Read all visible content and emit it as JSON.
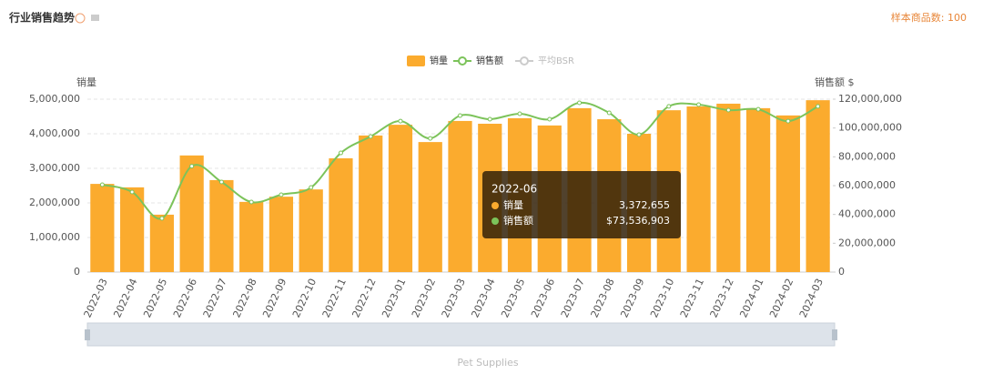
{
  "header": {
    "title": "行业销售趋势",
    "sample": "样本商品数: 100"
  },
  "chart_data": {
    "type": "bar_line",
    "categories": [
      "2022-03",
      "2022-04",
      "2022-05",
      "2022-06",
      "2022-07",
      "2022-08",
      "2022-09",
      "2022-10",
      "2022-11",
      "2022-12",
      "2023-01",
      "2023-02",
      "2023-03",
      "2023-04",
      "2023-05",
      "2023-06",
      "2023-07",
      "2023-08",
      "2023-09",
      "2023-10",
      "2023-11",
      "2023-12",
      "2024-01",
      "2024-02",
      "2024-03"
    ],
    "series": [
      {
        "name": "销量",
        "type": "bar",
        "color": "#fbab2e",
        "values": [
          2550000,
          2450000,
          1660000,
          3372655,
          2660000,
          2030000,
          2180000,
          2390000,
          3290000,
          3950000,
          4260000,
          3760000,
          4370000,
          4290000,
          4450000,
          4240000,
          4740000,
          4420000,
          4000000,
          4680000,
          4790000,
          4870000,
          4740000,
          4530000,
          4970000
        ]
      },
      {
        "name": "销售额",
        "type": "line",
        "axis": "y2",
        "color": "#7cc35a",
        "values": [
          60600000,
          55600000,
          37300000,
          73536903,
          62500000,
          48600000,
          53700000,
          58700000,
          82700000,
          94100000,
          104800000,
          92800000,
          108600000,
          106100000,
          109900000,
          106100000,
          117500000,
          110500000,
          95400000,
          115000000,
          116200000,
          112400000,
          113000000,
          104800000,
          115000000
        ]
      }
    ],
    "inactive_legend": "平均BSR",
    "ylabel": "销量",
    "y2label": "销售额 $",
    "ylim": [
      0,
      5000000
    ],
    "yticks": [
      0,
      {
        "value": 1000000,
        "label": "1,000,000"
      },
      {
        "value": 2000000,
        "label": "2,000,000"
      },
      {
        "value": 3000000,
        "label": "3,000,000"
      },
      {
        "value": 4000000,
        "label": "4,000,000"
      },
      {
        "value": 5000000,
        "label": "5,000,000"
      }
    ],
    "y2lim": [
      0,
      120000000
    ],
    "y2ticks": [
      0,
      {
        "value": 20000000,
        "label": "20,000,000"
      },
      {
        "value": 40000000,
        "label": "40,000,000"
      },
      {
        "value": 60000000,
        "label": "60,000,000"
      },
      {
        "value": 80000000,
        "label": "80,000,000"
      },
      {
        "value": 100000000,
        "label": "100,000,000"
      },
      {
        "value": 120000000,
        "label": "120,000,000"
      }
    ],
    "grid": true,
    "tooltip": {
      "title": "2022-06",
      "rows": [
        {
          "name": "销量",
          "value": "3,372,655"
        },
        {
          "name": "销售额",
          "value": "$73,536,903"
        }
      ]
    },
    "zoom_label": "Pet Supplies"
  }
}
